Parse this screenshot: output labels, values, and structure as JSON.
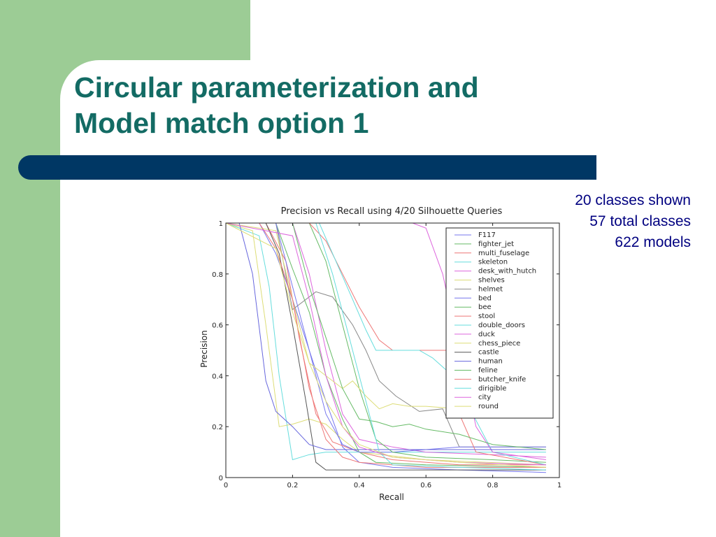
{
  "slide": {
    "title_line1": "Circular parameterization and",
    "title_line2": "Model match option 1",
    "stats": [
      "20 classes shown",
      "57 total classes",
      "622 models"
    ],
    "colors": {
      "green_panel": "#9ccc95",
      "title": "#136b64",
      "bar": "#003764",
      "stats": "#000080"
    }
  },
  "chart_data": {
    "type": "line",
    "title": "Precision vs Recall using 4/20 Silhouette Queries",
    "xlabel": "Recall",
    "ylabel": "Precision",
    "xlim": [
      0,
      1
    ],
    "ylim": [
      0,
      1
    ],
    "xticks": [
      "0",
      "0.2",
      "0.4",
      "0.6",
      "0.8",
      "1"
    ],
    "yticks": [
      "0",
      "0.2",
      "0.4",
      "0.6",
      "0.8",
      "1"
    ],
    "grid": false,
    "legend": "upper-right",
    "series": [
      {
        "name": "F117",
        "color": "#7777ee",
        "points": [
          [
            0,
            1
          ],
          [
            0.05,
            1
          ],
          [
            0.1,
            1
          ],
          [
            0.15,
            0.88
          ],
          [
            0.2,
            0.7
          ],
          [
            0.25,
            0.5
          ],
          [
            0.3,
            0.3
          ],
          [
            0.35,
            0.12
          ],
          [
            0.4,
            0.06
          ],
          [
            0.5,
            0.04
          ],
          [
            0.7,
            0.03
          ],
          [
            0.96,
            0.02
          ]
        ]
      },
      {
        "name": "fighter_jet",
        "color": "#66bb66",
        "points": [
          [
            0,
            1
          ],
          [
            0.1,
            1
          ],
          [
            0.15,
            1
          ],
          [
            0.2,
            0.82
          ],
          [
            0.25,
            0.65
          ],
          [
            0.3,
            0.4
          ],
          [
            0.35,
            0.23
          ],
          [
            0.4,
            0.1
          ],
          [
            0.45,
            0.06
          ],
          [
            0.6,
            0.05
          ],
          [
            0.96,
            0.04
          ]
        ]
      },
      {
        "name": "multi_fuselage",
        "color": "#ee7777",
        "points": [
          [
            0,
            1
          ],
          [
            0.12,
            1
          ],
          [
            0.18,
            0.85
          ],
          [
            0.22,
            0.55
          ],
          [
            0.27,
            0.25
          ],
          [
            0.32,
            0.14
          ],
          [
            0.4,
            0.1
          ],
          [
            0.5,
            0.07
          ],
          [
            0.7,
            0.05
          ],
          [
            0.96,
            0.05
          ]
        ]
      },
      {
        "name": "skeleton",
        "color": "#66dddd",
        "points": [
          [
            0,
            1
          ],
          [
            0.1,
            0.95
          ],
          [
            0.13,
            0.75
          ],
          [
            0.16,
            0.4
          ],
          [
            0.2,
            0.07
          ],
          [
            0.25,
            0.09
          ],
          [
            0.3,
            0.1
          ],
          [
            0.5,
            0.1
          ],
          [
            0.7,
            0.1
          ],
          [
            0.96,
            0.1
          ]
        ]
      },
      {
        "name": "desk_with_hutch",
        "color": "#dd66dd",
        "points": [
          [
            0,
            1
          ],
          [
            0.2,
            1
          ],
          [
            0.25,
            0.8
          ],
          [
            0.3,
            0.5
          ],
          [
            0.35,
            0.25
          ],
          [
            0.4,
            0.15
          ],
          [
            0.5,
            0.12
          ],
          [
            0.6,
            0.1
          ],
          [
            0.8,
            0.09
          ],
          [
            0.96,
            0.08
          ]
        ]
      },
      {
        "name": "shelves",
        "color": "#dddd77",
        "points": [
          [
            0,
            1
          ],
          [
            0.08,
            0.97
          ],
          [
            0.12,
            0.6
          ],
          [
            0.16,
            0.2
          ],
          [
            0.2,
            0.21
          ],
          [
            0.25,
            0.23
          ],
          [
            0.3,
            0.21
          ],
          [
            0.35,
            0.15
          ],
          [
            0.4,
            0.1
          ],
          [
            0.6,
            0.07
          ],
          [
            0.96,
            0.05
          ]
        ]
      },
      {
        "name": "helmet",
        "color": "#888888",
        "points": [
          [
            0,
            1
          ],
          [
            0.15,
            1
          ],
          [
            0.2,
            0.66
          ],
          [
            0.27,
            0.73
          ],
          [
            0.32,
            0.71
          ],
          [
            0.38,
            0.6
          ],
          [
            0.42,
            0.5
          ],
          [
            0.46,
            0.38
          ],
          [
            0.51,
            0.32
          ],
          [
            0.58,
            0.26
          ],
          [
            0.65,
            0.27
          ],
          [
            0.7,
            0.12
          ],
          [
            0.8,
            0.12
          ],
          [
            0.96,
            0.12
          ]
        ]
      },
      {
        "name": "bed",
        "color": "#7777ee",
        "points": [
          [
            0,
            1
          ],
          [
            0.15,
            1
          ],
          [
            0.2,
            0.75
          ],
          [
            0.25,
            0.5
          ],
          [
            0.3,
            0.25
          ],
          [
            0.35,
            0.13
          ],
          [
            0.4,
            0.1
          ],
          [
            0.5,
            0.1
          ],
          [
            0.6,
            0.11
          ],
          [
            0.7,
            0.12
          ],
          [
            0.96,
            0.12
          ]
        ]
      },
      {
        "name": "bee",
        "color": "#66bb66",
        "points": [
          [
            0,
            1
          ],
          [
            0.25,
            1
          ],
          [
            0.3,
            0.85
          ],
          [
            0.35,
            0.6
          ],
          [
            0.4,
            0.35
          ],
          [
            0.45,
            0.15
          ],
          [
            0.5,
            0.1
          ],
          [
            0.6,
            0.08
          ],
          [
            0.8,
            0.07
          ],
          [
            0.96,
            0.06
          ]
        ]
      },
      {
        "name": "stool",
        "color": "#ee7777",
        "points": [
          [
            0,
            1
          ],
          [
            0.25,
            1
          ],
          [
            0.3,
            0.93
          ],
          [
            0.35,
            0.8
          ],
          [
            0.4,
            0.67
          ],
          [
            0.46,
            0.54
          ],
          [
            0.5,
            0.5
          ],
          [
            0.55,
            0.5
          ],
          [
            0.68,
            0.5
          ],
          [
            0.7,
            0.25
          ],
          [
            0.75,
            0.1
          ],
          [
            0.96,
            0.05
          ]
        ]
      },
      {
        "name": "double_doors",
        "color": "#66dddd",
        "points": [
          [
            0,
            1
          ],
          [
            0.28,
            1
          ],
          [
            0.33,
            0.85
          ],
          [
            0.38,
            0.7
          ],
          [
            0.42,
            0.58
          ],
          [
            0.45,
            0.5
          ],
          [
            0.52,
            0.5
          ],
          [
            0.58,
            0.5
          ],
          [
            0.62,
            0.47
          ],
          [
            0.68,
            0.4
          ],
          [
            0.72,
            0.3
          ],
          [
            0.8,
            0.1
          ],
          [
            0.96,
            0.05
          ]
        ]
      },
      {
        "name": "duck",
        "color": "#dd66dd",
        "points": [
          [
            0,
            1
          ],
          [
            0.56,
            1
          ],
          [
            0.6,
            0.98
          ],
          [
            0.65,
            0.8
          ],
          [
            0.7,
            0.5
          ],
          [
            0.75,
            0.2
          ],
          [
            0.8,
            0.1
          ],
          [
            0.96,
            0.07
          ]
        ]
      },
      {
        "name": "chess_piece",
        "color": "#dddd77",
        "points": [
          [
            0,
            1
          ],
          [
            0.15,
            0.97
          ],
          [
            0.2,
            0.7
          ],
          [
            0.25,
            0.45
          ],
          [
            0.3,
            0.4
          ],
          [
            0.35,
            0.35
          ],
          [
            0.38,
            0.38
          ],
          [
            0.42,
            0.32
          ],
          [
            0.46,
            0.27
          ],
          [
            0.5,
            0.29
          ],
          [
            0.55,
            0.28
          ],
          [
            0.6,
            0.28
          ],
          [
            0.7,
            0.27
          ],
          [
            0.96,
            0.27
          ]
        ]
      },
      {
        "name": "castle",
        "color": "#555555",
        "points": [
          [
            0,
            1
          ],
          [
            0.12,
            1
          ],
          [
            0.16,
            0.88
          ],
          [
            0.2,
            0.6
          ],
          [
            0.24,
            0.3
          ],
          [
            0.27,
            0.06
          ],
          [
            0.3,
            0.03
          ],
          [
            0.4,
            0.03
          ],
          [
            0.6,
            0.03
          ],
          [
            0.96,
            0.03
          ]
        ]
      },
      {
        "name": "human",
        "color": "#6666dd",
        "points": [
          [
            0,
            1
          ],
          [
            0.04,
            1
          ],
          [
            0.08,
            0.8
          ],
          [
            0.12,
            0.38
          ],
          [
            0.15,
            0.26
          ],
          [
            0.2,
            0.2
          ],
          [
            0.25,
            0.13
          ],
          [
            0.3,
            0.11
          ],
          [
            0.4,
            0.11
          ],
          [
            0.6,
            0.11
          ],
          [
            0.96,
            0.11
          ]
        ]
      },
      {
        "name": "feline",
        "color": "#66bb66",
        "points": [
          [
            0,
            1
          ],
          [
            0.2,
            1
          ],
          [
            0.25,
            0.75
          ],
          [
            0.3,
            0.55
          ],
          [
            0.35,
            0.35
          ],
          [
            0.4,
            0.23
          ],
          [
            0.45,
            0.22
          ],
          [
            0.5,
            0.2
          ],
          [
            0.55,
            0.21
          ],
          [
            0.6,
            0.19
          ],
          [
            0.7,
            0.17
          ],
          [
            0.8,
            0.13
          ],
          [
            0.96,
            0.11
          ]
        ]
      },
      {
        "name": "butcher_knife",
        "color": "#ee7777",
        "points": [
          [
            0,
            1
          ],
          [
            0.1,
            1
          ],
          [
            0.15,
            0.9
          ],
          [
            0.2,
            0.7
          ],
          [
            0.25,
            0.35
          ],
          [
            0.3,
            0.15
          ],
          [
            0.35,
            0.08
          ],
          [
            0.4,
            0.06
          ],
          [
            0.6,
            0.04
          ],
          [
            0.96,
            0.04
          ]
        ]
      },
      {
        "name": "dirigible",
        "color": "#66dddd",
        "points": [
          [
            0,
            1
          ],
          [
            0.27,
            1
          ],
          [
            0.32,
            0.8
          ],
          [
            0.37,
            0.55
          ],
          [
            0.42,
            0.3
          ],
          [
            0.46,
            0.1
          ],
          [
            0.5,
            0.05
          ],
          [
            0.7,
            0.04
          ],
          [
            0.96,
            0.03
          ]
        ]
      },
      {
        "name": "city",
        "color": "#dd66dd",
        "points": [
          [
            0,
            1
          ],
          [
            0.2,
            0.95
          ],
          [
            0.25,
            0.7
          ],
          [
            0.3,
            0.4
          ],
          [
            0.35,
            0.2
          ],
          [
            0.4,
            0.12
          ],
          [
            0.5,
            0.08
          ],
          [
            0.7,
            0.06
          ],
          [
            0.96,
            0.05
          ]
        ]
      },
      {
        "name": "round",
        "color": "#dddd77",
        "points": [
          [
            0,
            1
          ],
          [
            0.15,
            0.9
          ],
          [
            0.2,
            0.65
          ],
          [
            0.25,
            0.45
          ],
          [
            0.3,
            0.3
          ],
          [
            0.35,
            0.2
          ],
          [
            0.4,
            0.13
          ],
          [
            0.5,
            0.08
          ],
          [
            0.7,
            0.06
          ],
          [
            0.96,
            0.04
          ]
        ]
      }
    ]
  }
}
